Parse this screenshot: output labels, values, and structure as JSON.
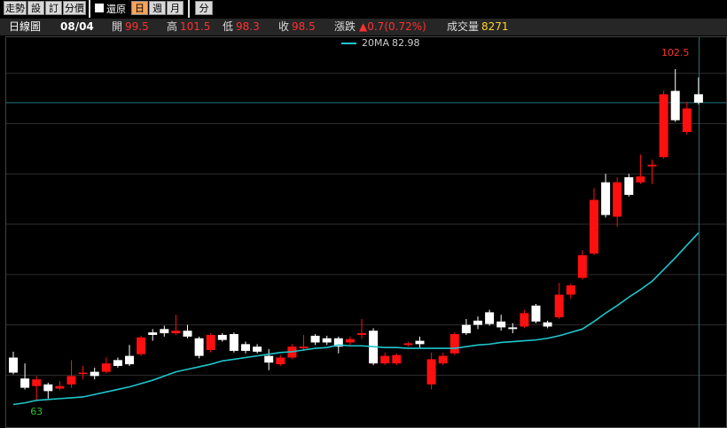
{
  "toolbar": {
    "tools": [
      "走勢",
      "設",
      "訂",
      "分價"
    ],
    "restore": "還原",
    "periods": [
      "日",
      "週",
      "月"
    ],
    "minute": "分"
  },
  "info": {
    "chart_name": "日線圖",
    "date": "08/04",
    "open_label": "開",
    "high_label": "高",
    "low_label": "低",
    "close_label": "收",
    "change_label": "漲跌",
    "change": "▲0.7(0.72%)",
    "volume_label": "成交量",
    "volume": 8271
  },
  "chart_data": {
    "type": "candlestick",
    "open": [
      68.1,
      65.6,
      64.7,
      64.9,
      64.4,
      64.9,
      66.3,
      66.4,
      66.4,
      67.8,
      68.3,
      68.5,
      71.1,
      71.5,
      71.0,
      71.3,
      70.4,
      69.0,
      70.8,
      70.9,
      69.7,
      69.4,
      68.3,
      67.3,
      68.1,
      69.2,
      70.7,
      70.4,
      70.4,
      69.9,
      70.8,
      71.3,
      67.4,
      67.4,
      69.6,
      70.1,
      64.9,
      67.4,
      68.6,
      72.0,
      72.5,
      73.5,
      72.4,
      71.7,
      71.8,
      74.3,
      72.3,
      72.9,
      75.6,
      77.6,
      80.5,
      89.0,
      84.9,
      89.6,
      89.0,
      90.9,
      92.0,
      99.9,
      95.0,
      99.5
    ],
    "high": [
      68.8,
      67.4,
      65.9,
      65.1,
      65.3,
      67.8,
      67.1,
      66.9,
      68.1,
      68.1,
      69.6,
      70.7,
      71.5,
      71.9,
      73.2,
      72.0,
      70.6,
      71.0,
      71.0,
      71.1,
      70.0,
      69.7,
      69.1,
      68.4,
      69.7,
      70.8,
      70.9,
      70.7,
      70.6,
      70.6,
      72.7,
      71.6,
      68.7,
      68.6,
      70.0,
      70.6,
      68.7,
      68.7,
      71.1,
      72.7,
      73.0,
      73.8,
      73.2,
      72.2,
      73.8,
      74.5,
      72.5,
      77.0,
      76.9,
      80.9,
      88.3,
      90.0,
      89.6,
      90.0,
      92.3,
      91.7,
      99.9,
      102.5,
      98.6,
      101.5
    ],
    "low": [
      66.1,
      64.3,
      63,
      63.2,
      64.2,
      64.5,
      65.5,
      65.5,
      66.2,
      66.9,
      67.1,
      68.3,
      70.1,
      70.6,
      70.8,
      70.4,
      68.0,
      68.7,
      70.0,
      68.7,
      68.6,
      68.6,
      66.6,
      67.1,
      67.9,
      68.9,
      69.6,
      69.6,
      68.6,
      69.6,
      70.3,
      67.2,
      67.2,
      67.2,
      69.4,
      69.3,
      64.3,
      67.2,
      68.4,
      70.8,
      71.5,
      71.9,
      71.3,
      71.0,
      71.6,
      72.2,
      71.6,
      72.7,
      75.1,
      77.4,
      80.3,
      84.8,
      83.7,
      87.3,
      88.8,
      88.8,
      91.8,
      96.2,
      94.7,
      98.3
    ],
    "close": [
      66.3,
      64.5,
      65.5,
      64.1,
      64.7,
      65.9,
      66.3,
      65.9,
      67.4,
      67.1,
      67.3,
      70.5,
      70.8,
      71.0,
      71.3,
      70.6,
      68.3,
      70.8,
      70.2,
      68.9,
      68.9,
      68.8,
      67.5,
      68.1,
      69.4,
      69.4,
      69.9,
      69.9,
      69.4,
      70.3,
      71.0,
      67.4,
      68.3,
      68.4,
      69.8,
      69.7,
      67.9,
      68.3,
      70.9,
      71.0,
      72.0,
      72.1,
      71.7,
      71.5,
      73.4,
      72.4,
      71.8,
      75.6,
      76.7,
      80.3,
      86.9,
      85.1,
      89.0,
      87.5,
      89.7,
      91.1,
      99.5,
      96.4,
      97.8,
      98.5
    ],
    "ma": {
      "name": "20MA",
      "color": "#1fc6cc",
      "values": [
        62.5,
        62.7,
        63.0,
        63.1,
        63.2,
        63.3,
        63.4,
        63.7,
        64.0,
        64.3,
        64.6,
        65.0,
        65.4,
        65.9,
        66.4,
        66.7,
        67.0,
        67.3,
        67.7,
        67.9,
        68.1,
        68.3,
        68.5,
        68.7,
        68.8,
        69.0,
        69.2,
        69.3,
        69.6,
        69.5,
        69.5,
        69.4,
        69.3,
        69.3,
        69.2,
        69.2,
        69.2,
        69.2,
        69.2,
        69.4,
        69.6,
        69.7,
        69.9,
        70.0,
        70.1,
        70.2,
        70.4,
        70.7,
        71.1,
        71.5,
        72.4,
        73.4,
        74.3,
        75.3,
        76.2,
        77.2,
        78.6,
        80.0,
        81.5,
        82.98
      ]
    },
    "up_color": "#ff1010",
    "down_color": "#ffffff",
    "grid_color": "#2e2e2e",
    "ylim": [
      59.7,
      106.3
    ],
    "ygrid": [
      66,
      72,
      78,
      84,
      90,
      96,
      102
    ],
    "grid": true
  }
}
